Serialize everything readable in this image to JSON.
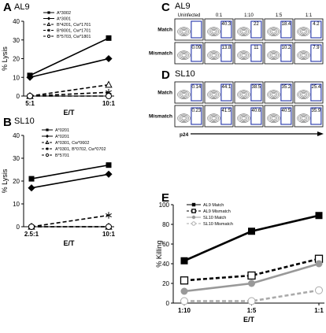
{
  "chart_data": [
    {
      "panel": "A",
      "type": "line",
      "title": "AL9",
      "xlabel": "E/T",
      "ylabel": "% Lysis",
      "categories": [
        "5:1",
        "10:1"
      ],
      "ylim": [
        0,
        40
      ],
      "yticks": [
        0,
        10,
        20,
        30,
        40
      ],
      "legend_position": "top-right",
      "series": [
        {
          "name": "A*3002",
          "values": [
            11,
            31
          ],
          "marker": "square",
          "line": "solid"
        },
        {
          "name": "A*3001",
          "values": [
            10,
            20
          ],
          "marker": "diamond",
          "line": "solid"
        },
        {
          "name": "B*4201, Cw*1701",
          "values": [
            0,
            6
          ],
          "marker": "triangle",
          "line": "dashed"
        },
        {
          "name": "B*8001, Cw*1701",
          "values": [
            0,
            2
          ],
          "marker": "asterisk",
          "line": "dashed"
        },
        {
          "name": "B*5703, Cw*1801",
          "values": [
            0,
            0
          ],
          "marker": "circle",
          "line": "dashed"
        }
      ]
    },
    {
      "panel": "B",
      "type": "line",
      "title": "SL10",
      "xlabel": "E/T",
      "ylabel": "% Lysis",
      "categories": [
        "2.5:1",
        "10:1"
      ],
      "ylim": [
        0,
        40
      ],
      "yticks": [
        0,
        10,
        20,
        30,
        40
      ],
      "legend_position": "top-right",
      "series": [
        {
          "name": "A*0201",
          "values": [
            21,
            27
          ],
          "marker": "square",
          "line": "solid"
        },
        {
          "name": "A*0201",
          "values": [
            17,
            23
          ],
          "marker": "diamond",
          "line": "solid"
        },
        {
          "name": "A*0301, Cw*0602",
          "values": [
            0,
            0
          ],
          "marker": "triangle",
          "line": "dashed"
        },
        {
          "name": "A*0301, B*0702, Cw*0702",
          "values": [
            0,
            5
          ],
          "marker": "asterisk",
          "line": "dashed"
        },
        {
          "name": "B*5701",
          "values": [
            0,
            0
          ],
          "marker": "circle",
          "line": "dashed"
        }
      ]
    },
    {
      "panel": "C",
      "type": "table",
      "title": "AL9",
      "columns": [
        "Uninfected",
        "0:1",
        "1:10",
        "1:5",
        "1:1"
      ],
      "rows": [
        {
          "label": "Match",
          "values": [
            "",
            "40.3",
            "22",
            "18.4",
            "4.2"
          ]
        },
        {
          "label": "Mismatch",
          "values": [
            "0.09",
            "13.8",
            "11",
            "10.2",
            "7.9"
          ]
        }
      ]
    },
    {
      "panel": "D",
      "type": "table",
      "title": "SL10",
      "xlabel": "p24",
      "rows": [
        {
          "label": "Match",
          "values": [
            "0.14",
            "44.1",
            "38.5",
            "35.2",
            "25.4"
          ]
        },
        {
          "label": "Mismatch",
          "values": [
            "0.23",
            "41.5",
            "40.6",
            "40.5",
            "35.9"
          ]
        }
      ]
    },
    {
      "panel": "E",
      "type": "line",
      "title": "",
      "xlabel": "E/T",
      "ylabel": "% Killing",
      "categories": [
        "1:10",
        "1:5",
        "1:1"
      ],
      "ylim": [
        0,
        100
      ],
      "yticks": [
        0,
        20,
        40,
        60,
        80,
        100
      ],
      "legend_position": "top-left",
      "series": [
        {
          "name": "AL9 Match",
          "values": [
            43,
            73,
            89
          ],
          "marker": "square-filled",
          "line": "solid",
          "color": "#000000"
        },
        {
          "name": "AL9 Mismatch",
          "values": [
            23,
            28,
            45
          ],
          "marker": "square-open",
          "line": "dashed",
          "color": "#000000"
        },
        {
          "name": "SL10 Match",
          "values": [
            12,
            20,
            40
          ],
          "marker": "circle-filled",
          "line": "solid",
          "color": "#999999"
        },
        {
          "name": "SL10 Mismatch",
          "values": [
            2,
            2,
            13
          ],
          "marker": "circle-open",
          "line": "dashed",
          "color": "#aaaaaa"
        }
      ]
    }
  ]
}
